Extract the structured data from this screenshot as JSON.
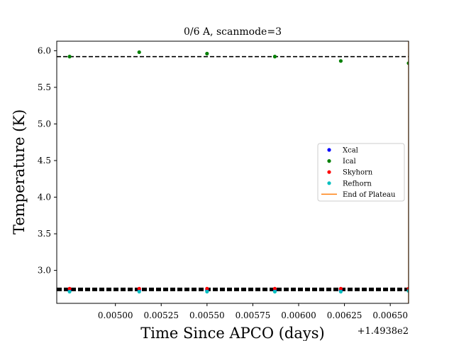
{
  "chart_data": {
    "type": "scatter",
    "title": "0/6 A, scanmode=3",
    "xlabel": "Time Since APCO (days)",
    "ylabel": "Temperature (K)",
    "x_offset_label": "+1.4938e2",
    "xlim": [
      149.38468,
      149.3866
    ],
    "ylim": [
      2.55,
      6.13
    ],
    "x_ticks": [
      149.385,
      149.38525,
      149.3855,
      149.38575,
      149.386,
      149.38625,
      149.3865
    ],
    "x_tick_labels": [
      "0.00500",
      "0.00525",
      "0.00550",
      "0.00575",
      "0.00600",
      "0.00625",
      "0.00650"
    ],
    "y_ticks": [
      3.0,
      3.5,
      4.0,
      4.5,
      5.0,
      5.5,
      6.0
    ],
    "y_tick_labels": [
      "3.0",
      "3.5",
      "4.0",
      "4.5",
      "5.0",
      "5.5",
      "6.0"
    ],
    "reference_lines": [
      {
        "y": 5.92,
        "style": "dashed",
        "width": "thin"
      },
      {
        "y": 2.74,
        "style": "dashed",
        "width": "thick"
      }
    ],
    "series": [
      {
        "name": "Xcal",
        "color": "#0000ff",
        "x": [
          149.38475,
          149.38513,
          149.3855,
          149.38587,
          149.38623,
          149.3866
        ],
        "y": [
          2.73,
          2.73,
          2.73,
          2.73,
          2.73,
          2.73
        ]
      },
      {
        "name": "Ical",
        "color": "#008000",
        "x": [
          149.38475,
          149.38513,
          149.3855,
          149.38587,
          149.38623,
          149.3866
        ],
        "y": [
          5.92,
          5.98,
          5.96,
          5.92,
          5.86,
          5.83
        ]
      },
      {
        "name": "Skyhorn",
        "color": "#ff0000",
        "x": [
          149.38475,
          149.38513,
          149.3855,
          149.38587,
          149.38623,
          149.3866
        ],
        "y": [
          2.75,
          2.75,
          2.75,
          2.75,
          2.75,
          2.75
        ]
      },
      {
        "name": "Refhorn",
        "color": "#00bfbf",
        "x": [
          149.38475,
          149.38513,
          149.3855,
          149.38587,
          149.38623,
          149.3866
        ],
        "y": [
          2.71,
          2.71,
          2.71,
          2.71,
          2.71,
          2.72
        ]
      }
    ],
    "vertical_lines": [
      {
        "name": "End of Plateau",
        "color": "#ff7f0e",
        "x": 149.3866
      }
    ],
    "legend": {
      "placement": "center-right"
    },
    "grid": false
  }
}
